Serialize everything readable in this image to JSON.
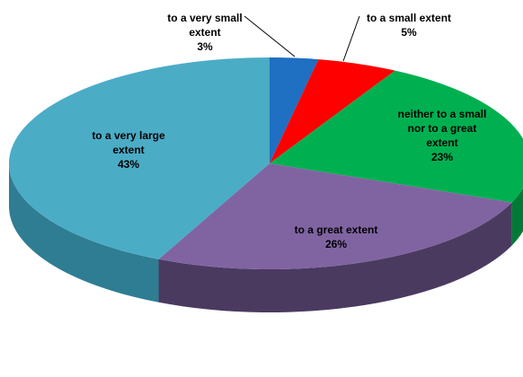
{
  "chart_data": {
    "type": "pie",
    "title": "",
    "three_d": true,
    "legend": "none",
    "slices": [
      {
        "label_lines": [
          "to a very small",
          "extent"
        ],
        "percent_label": "3%",
        "value": 3,
        "color": "#1F6FC2",
        "side_color": "#15508f"
      },
      {
        "label_lines": [
          "to a small extent"
        ],
        "percent_label": "5%",
        "value": 5,
        "color": "#FF0000",
        "side_color": "#b50000"
      },
      {
        "label_lines": [
          "neither to a small",
          "nor to a great",
          "extent"
        ],
        "percent_label": "23%",
        "value": 23,
        "color": "#00B050",
        "side_color": "#007a37"
      },
      {
        "label_lines": [
          "to a great extent"
        ],
        "percent_label": "26%",
        "value": 26,
        "color": "#8064A2",
        "side_color": "#4a3a60"
      },
      {
        "label_lines": [
          "to a very large",
          "extent"
        ],
        "percent_label": "43%",
        "value": 43,
        "color": "#4BACC6",
        "side_color": "#2f7d92"
      }
    ]
  }
}
